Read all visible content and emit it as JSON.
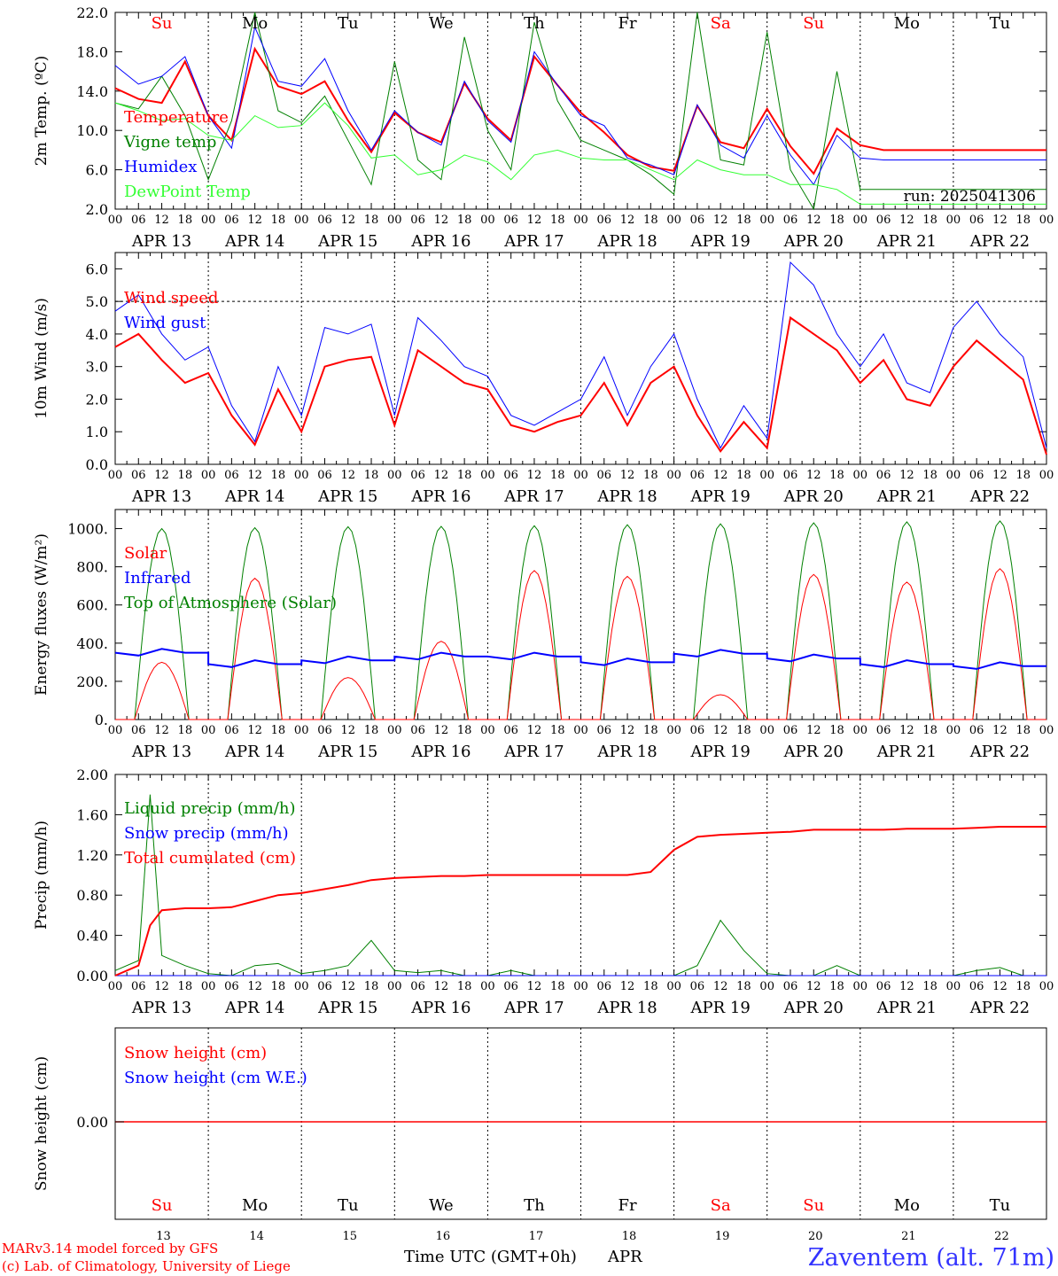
{
  "footer": {
    "model": "MARv3.14 model forced by GFS",
    "credit": "(c) Lab. of Climatology, University of Liege",
    "xaxis_title": "Time UTC (GMT+0h)",
    "month": "APR",
    "station": "Zaventem (alt. 71m)"
  },
  "days": {
    "weekday_labels": [
      "Su",
      "Mo",
      "Tu",
      "We",
      "Th",
      "Fr",
      "Sa",
      "Su",
      "Mo",
      "Tu"
    ],
    "weekday_colors": [
      "#ff0000",
      "#000000",
      "#000000",
      "#000000",
      "#000000",
      "#000000",
      "#ff0000",
      "#ff0000",
      "#000000",
      "#000000"
    ],
    "date_labels": [
      "APR 13",
      "APR 14",
      "APR 15",
      "APR 16",
      "APR 17",
      "APR 18",
      "APR 19",
      "APR 20",
      "APR 21",
      "APR 22"
    ],
    "day_numbers": [
      "13",
      "14",
      "15",
      "16",
      "17",
      "18",
      "19",
      "20",
      "21",
      "22"
    ],
    "hour_labels": [
      "00",
      "06",
      "12",
      "18"
    ],
    "last_hour_label": "00"
  },
  "chart_data": [
    {
      "type": "line",
      "ylabel": "2m Temp. (ºC)",
      "ylim": [
        2,
        22
      ],
      "yticks": [
        "2.0",
        "6.0",
        "10.0",
        "14.0",
        "18.0",
        "22.0"
      ],
      "run_label": "run: 2025041306",
      "x_hours": [
        0,
        6,
        12,
        18,
        24,
        30,
        36,
        42,
        48,
        54,
        60,
        66,
        72,
        78,
        84,
        90,
        96,
        102,
        108,
        114,
        120,
        126,
        132,
        138,
        144,
        150,
        156,
        162,
        168,
        174,
        180,
        186,
        192,
        198,
        204,
        210,
        216,
        222,
        228,
        234,
        240
      ],
      "series": [
        {
          "name": "Temperature",
          "color": "#ff0000",
          "width": 2,
          "values": [
            14.3,
            13.2,
            12.8,
            17.0,
            11.5,
            9.0,
            18.3,
            14.5,
            13.7,
            15.0,
            11.0,
            7.8,
            11.8,
            9.8,
            8.8,
            14.8,
            11.2,
            9.0,
            17.5,
            14.6,
            11.8,
            9.8,
            7.5,
            6.3,
            5.9,
            12.5,
            8.8,
            8.2,
            12.2,
            8.4,
            5.6,
            10.2,
            8.5,
            8,
            8,
            8,
            8,
            8,
            8,
            8,
            8
          ]
        },
        {
          "name": "Vigne temp",
          "color": "#008000",
          "width": 1,
          "values": [
            12.8,
            12.2,
            15.5,
            11.5,
            5.0,
            11.0,
            22.0,
            12.0,
            10.8,
            13.5,
            9.0,
            4.5,
            17.0,
            7.0,
            5.0,
            19.5,
            10.0,
            6.0,
            21.0,
            13.0,
            9.0,
            8.0,
            7.0,
            5.5,
            3.5,
            22.0,
            7.0,
            6.5,
            20.0,
            6.0,
            2.0,
            16.0,
            4.0,
            4,
            4,
            4,
            4,
            4,
            4,
            4,
            4
          ]
        },
        {
          "name": "Humidex",
          "color": "#0000ff",
          "width": 1,
          "values": [
            16.6,
            14.7,
            15.5,
            17.5,
            11.5,
            8.2,
            20.5,
            15.0,
            14.5,
            17.3,
            12.0,
            8.0,
            12.0,
            9.8,
            8.5,
            15.0,
            11.0,
            8.8,
            18.0,
            14.6,
            11.5,
            10.5,
            7.2,
            6.5,
            5.5,
            12.6,
            8.5,
            7.2,
            11.5,
            7.5,
            4.5,
            9.5,
            7.2,
            7,
            7,
            7,
            7,
            7,
            7,
            7,
            7
          ]
        },
        {
          "name": "DewPoint Temp",
          "color": "#33ff33",
          "width": 1,
          "values": [
            12.8,
            12.0,
            11.0,
            11.2,
            9.5,
            9.0,
            11.5,
            10.3,
            10.5,
            12.8,
            10.5,
            7.2,
            7.5,
            5.5,
            6.0,
            7.5,
            6.8,
            5.0,
            7.5,
            8.0,
            7.2,
            7.0,
            7.0,
            6.0,
            5.0,
            7.0,
            6.0,
            5.5,
            5.5,
            4.5,
            4.5,
            4.0,
            2.5,
            2.5,
            2.5,
            2.5,
            2.5,
            2.5,
            2.5,
            2.5,
            2.5
          ]
        }
      ]
    },
    {
      "type": "line",
      "ylabel": "10m Wind (m/s)",
      "ylim": [
        0,
        6.5
      ],
      "yticks": [
        "0.0",
        "1.0",
        "2.0",
        "3.0",
        "4.0",
        "5.0",
        "6.0"
      ],
      "x_hours": [
        0,
        6,
        12,
        18,
        24,
        30,
        36,
        42,
        48,
        54,
        60,
        66,
        72,
        78,
        84,
        90,
        96,
        102,
        108,
        114,
        120,
        126,
        132,
        138,
        144,
        150,
        156,
        162,
        168,
        174,
        180,
        186,
        192,
        198,
        204,
        210,
        216,
        222,
        228,
        234,
        240
      ],
      "series": [
        {
          "name": "Wind speed",
          "color": "#ff0000",
          "width": 2,
          "values": [
            3.6,
            4.0,
            3.2,
            2.5,
            2.8,
            1.5,
            0.6,
            2.3,
            1.0,
            3.0,
            3.2,
            3.3,
            1.2,
            3.5,
            3.0,
            2.5,
            2.3,
            1.2,
            1.0,
            1.3,
            1.5,
            2.5,
            1.2,
            2.5,
            3.0,
            1.5,
            0.4,
            1.3,
            0.5,
            4.5,
            4.0,
            3.5,
            2.5,
            3.2,
            2.0,
            1.8,
            3.0,
            3.8,
            3.2,
            2.6,
            0.3
          ]
        },
        {
          "name": "Wind gust",
          "color": "#0000ff",
          "width": 1,
          "values": [
            4.7,
            5.2,
            4.0,
            3.2,
            3.6,
            1.8,
            0.7,
            3.0,
            1.5,
            4.2,
            4.0,
            4.3,
            1.5,
            4.5,
            3.8,
            3.0,
            2.7,
            1.5,
            1.2,
            1.6,
            2.0,
            3.3,
            1.5,
            3.0,
            4.0,
            2.0,
            0.5,
            1.8,
            0.8,
            6.2,
            5.5,
            4.0,
            3.0,
            4.0,
            2.5,
            2.2,
            4.2,
            5.0,
            4.0,
            3.3,
            0.5
          ]
        }
      ],
      "reference_line": 5.0
    },
    {
      "type": "line",
      "ylabel": "Energy fluxes (W/m²)",
      "ylim": [
        0,
        1100
      ],
      "yticks": [
        "0.",
        "200.",
        "400.",
        "600.",
        "800.",
        "1000."
      ],
      "series": [
        {
          "name": "Solar",
          "color": "#ff0000",
          "width": 1,
          "daily_peaks": [
            300,
            740,
            220,
            410,
            780,
            750,
            130,
            760,
            720,
            790
          ]
        },
        {
          "name": "Infrared",
          "color": "#0000ff",
          "width": 2,
          "daily_means": [
            350,
            290,
            310,
            330,
            330,
            300,
            345,
            320,
            290,
            280
          ]
        },
        {
          "name": "Top of Atmosphere (Solar)",
          "color": "#008000",
          "width": 1,
          "daily_peaks": [
            1000,
            1005,
            1010,
            1012,
            1015,
            1020,
            1025,
            1030,
            1035,
            1040
          ]
        }
      ]
    },
    {
      "type": "line",
      "ylabel": "Precip (mm/h)",
      "ylim": [
        0,
        2.0
      ],
      "yticks": [
        "0.00",
        "0.40",
        "0.80",
        "1.20",
        "1.60",
        "2.00"
      ],
      "x_hours": [
        0,
        6,
        9,
        12,
        18,
        24,
        30,
        36,
        42,
        48,
        54,
        60,
        66,
        72,
        78,
        84,
        90,
        96,
        102,
        108,
        114,
        120,
        126,
        132,
        138,
        144,
        150,
        156,
        162,
        168,
        174,
        180,
        186,
        192,
        198,
        204,
        210,
        216,
        222,
        228,
        234,
        240
      ],
      "series": [
        {
          "name": "Liquid precip (mm/h)",
          "color": "#008000",
          "width": 1,
          "values": [
            0.05,
            0.15,
            1.8,
            0.2,
            0.1,
            0.02,
            0.0,
            0.1,
            0.12,
            0.02,
            0.05,
            0.1,
            0.35,
            0.05,
            0.03,
            0.05,
            0.0,
            0.0,
            0.05,
            0.0,
            0.0,
            0.0,
            0.0,
            0.0,
            0.0,
            0.0,
            0.1,
            0.55,
            0.25,
            0.02,
            0.0,
            0.0,
            0.1,
            0.0,
            0.0,
            0.0,
            0.0,
            0.0,
            0.05,
            0.08,
            0.0,
            0.0
          ]
        },
        {
          "name": "Snow precip (mm/h)",
          "color": "#0000ff",
          "width": 1,
          "values": [
            0,
            0,
            0,
            0,
            0,
            0,
            0,
            0,
            0,
            0,
            0,
            0,
            0,
            0,
            0,
            0,
            0,
            0,
            0,
            0,
            0,
            0,
            0,
            0,
            0,
            0,
            0,
            0,
            0,
            0,
            0,
            0,
            0,
            0,
            0,
            0,
            0,
            0,
            0,
            0,
            0,
            0
          ]
        },
        {
          "name": "Total cumulated (cm)",
          "color": "#ff0000",
          "width": 2,
          "values": [
            0.0,
            0.1,
            0.5,
            0.65,
            0.67,
            0.67,
            0.68,
            0.74,
            0.8,
            0.82,
            0.86,
            0.9,
            0.95,
            0.97,
            0.98,
            0.99,
            0.99,
            1.0,
            1.0,
            1.0,
            1.0,
            1.0,
            1.0,
            1.0,
            1.03,
            1.25,
            1.38,
            1.4,
            1.41,
            1.42,
            1.43,
            1.45,
            1.45,
            1.45,
            1.45,
            1.46,
            1.46,
            1.46,
            1.47,
            1.48,
            1.48,
            1.48
          ]
        }
      ]
    },
    {
      "type": "line",
      "ylabel": "Snow height (cm)",
      "yticks": [
        "0.00"
      ],
      "series": [
        {
          "name": "Snow height (cm)",
          "color": "#ff0000",
          "width": 1,
          "values": [
            0,
            0
          ]
        },
        {
          "name": "Snow height (cm W.E.)",
          "color": "#0000ff",
          "width": 1,
          "values": [
            0,
            0
          ]
        }
      ]
    }
  ]
}
